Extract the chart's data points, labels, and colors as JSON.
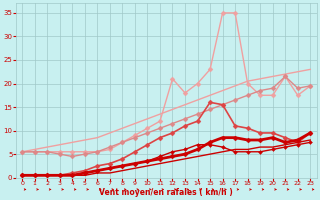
{
  "bg_color": "#c8f0f0",
  "grid_color": "#a0c8c8",
  "line_color_dark": "#cc0000",
  "xlabel": "Vent moyen/en rafales ( km/h )",
  "x_ticks": [
    0,
    1,
    2,
    3,
    4,
    5,
    6,
    7,
    8,
    9,
    10,
    11,
    12,
    13,
    14,
    15,
    16,
    17,
    18,
    19,
    20,
    21,
    22,
    23
  ],
  "y_ticks": [
    0,
    5,
    10,
    15,
    20,
    25,
    30,
    35
  ],
  "xlim": [
    -0.5,
    23.5
  ],
  "ylim": [
    0,
    37
  ],
  "series": [
    {
      "x": [
        0,
        1,
        2,
        3,
        4,
        5,
        6,
        7,
        8,
        9,
        10,
        11,
        12,
        13,
        14,
        15,
        16,
        17,
        18,
        19,
        20,
        21,
        22,
        23
      ],
      "y": [
        5.5,
        6.0,
        6.5,
        7.0,
        7.5,
        8.0,
        8.5,
        9.5,
        10.5,
        11.5,
        12.5,
        13.5,
        14.5,
        15.5,
        16.5,
        17.5,
        18.5,
        19.5,
        20.5,
        21.0,
        21.5,
        22.0,
        22.5,
        23.0
      ],
      "color": "#f0a0a0",
      "lw": 1.0,
      "marker": null,
      "ms": 0,
      "alpha": 1.0
    },
    {
      "x": [
        0,
        1,
        2,
        3,
        4,
        5,
        6,
        7,
        8,
        9,
        10,
        11,
        12,
        13,
        14,
        15,
        16,
        17,
        18,
        19,
        20,
        21,
        22,
        23
      ],
      "y": [
        5.5,
        5.5,
        5.5,
        5.5,
        5.5,
        5.5,
        5.5,
        6.0,
        7.5,
        9.0,
        10.5,
        12.0,
        21.0,
        18.0,
        20.0,
        23.0,
        35.0,
        35.0,
        20.0,
        17.5,
        17.5,
        21.5,
        17.5,
        19.5
      ],
      "color": "#f0a0a0",
      "lw": 1.0,
      "marker": "D",
      "ms": 2.5,
      "alpha": 1.0
    },
    {
      "x": [
        0,
        1,
        2,
        3,
        4,
        5,
        6,
        7,
        8,
        9,
        10,
        11,
        12,
        13,
        14,
        15,
        16,
        17,
        18,
        19,
        20,
        21,
        22,
        23
      ],
      "y": [
        5.5,
        5.5,
        5.5,
        5.0,
        4.5,
        5.0,
        5.5,
        6.5,
        7.5,
        8.5,
        9.5,
        10.5,
        11.5,
        12.5,
        13.5,
        14.5,
        15.5,
        16.5,
        17.5,
        18.5,
        19.0,
        21.5,
        19.0,
        19.5
      ],
      "color": "#dd8888",
      "lw": 1.0,
      "marker": "D",
      "ms": 2.5,
      "alpha": 1.0
    },
    {
      "x": [
        0,
        1,
        2,
        3,
        4,
        5,
        6,
        7,
        8,
        9,
        10,
        11,
        12,
        13,
        14,
        15,
        16,
        17,
        18,
        19,
        20,
        21,
        22,
        23
      ],
      "y": [
        0.5,
        0.5,
        0.5,
        0.5,
        1.0,
        1.5,
        2.5,
        3.0,
        4.0,
        5.5,
        7.0,
        8.5,
        9.5,
        11.0,
        12.0,
        16.0,
        15.5,
        11.0,
        10.5,
        9.5,
        9.5,
        8.5,
        7.5,
        9.5
      ],
      "color": "#dd4444",
      "lw": 1.2,
      "marker": "D",
      "ms": 2.5,
      "alpha": 1.0
    },
    {
      "x": [
        0,
        1,
        2,
        3,
        4,
        5,
        6,
        7,
        8,
        9,
        10,
        11,
        12,
        13,
        14,
        15,
        16,
        17,
        18,
        19,
        20,
        21,
        22,
        23
      ],
      "y": [
        0.5,
        0.5,
        0.5,
        0.5,
        0.5,
        1.0,
        1.5,
        2.0,
        2.5,
        3.0,
        3.5,
        4.0,
        4.5,
        5.0,
        6.0,
        7.5,
        8.5,
        8.5,
        8.0,
        8.0,
        8.5,
        7.5,
        8.0,
        9.5
      ],
      "color": "#cc0000",
      "lw": 2.0,
      "marker": "D",
      "ms": 2.5,
      "alpha": 1.0
    },
    {
      "x": [
        0,
        1,
        2,
        3,
        4,
        5,
        6,
        7,
        8,
        9,
        10,
        11,
        12,
        13,
        14,
        15,
        16,
        17,
        18,
        19,
        20,
        21,
        22,
        23
      ],
      "y": [
        0.5,
        0.5,
        0.5,
        0.5,
        0.5,
        1.0,
        1.5,
        2.0,
        2.5,
        3.0,
        3.5,
        4.5,
        5.5,
        6.0,
        7.0,
        7.0,
        6.5,
        5.5,
        5.5,
        5.5,
        6.0,
        6.5,
        7.0,
        7.5
      ],
      "color": "#cc0000",
      "lw": 1.0,
      "marker": "D",
      "ms": 2.0,
      "alpha": 1.0
    },
    {
      "x": [
        0,
        1,
        2,
        3,
        4,
        5,
        6,
        7,
        8,
        9,
        10,
        11,
        12,
        13,
        14,
        15,
        16,
        17,
        18,
        19,
        20,
        21,
        22,
        23
      ],
      "y": [
        0.5,
        0.5,
        0.5,
        0.5,
        0.5,
        0.5,
        1.0,
        1.0,
        1.5,
        2.0,
        2.5,
        3.0,
        3.5,
        4.0,
        4.5,
        5.0,
        5.5,
        6.0,
        6.0,
        6.5,
        6.5,
        7.0,
        7.5,
        8.0
      ],
      "color": "#cc0000",
      "lw": 1.0,
      "marker": null,
      "ms": 0,
      "alpha": 1.0
    }
  ]
}
